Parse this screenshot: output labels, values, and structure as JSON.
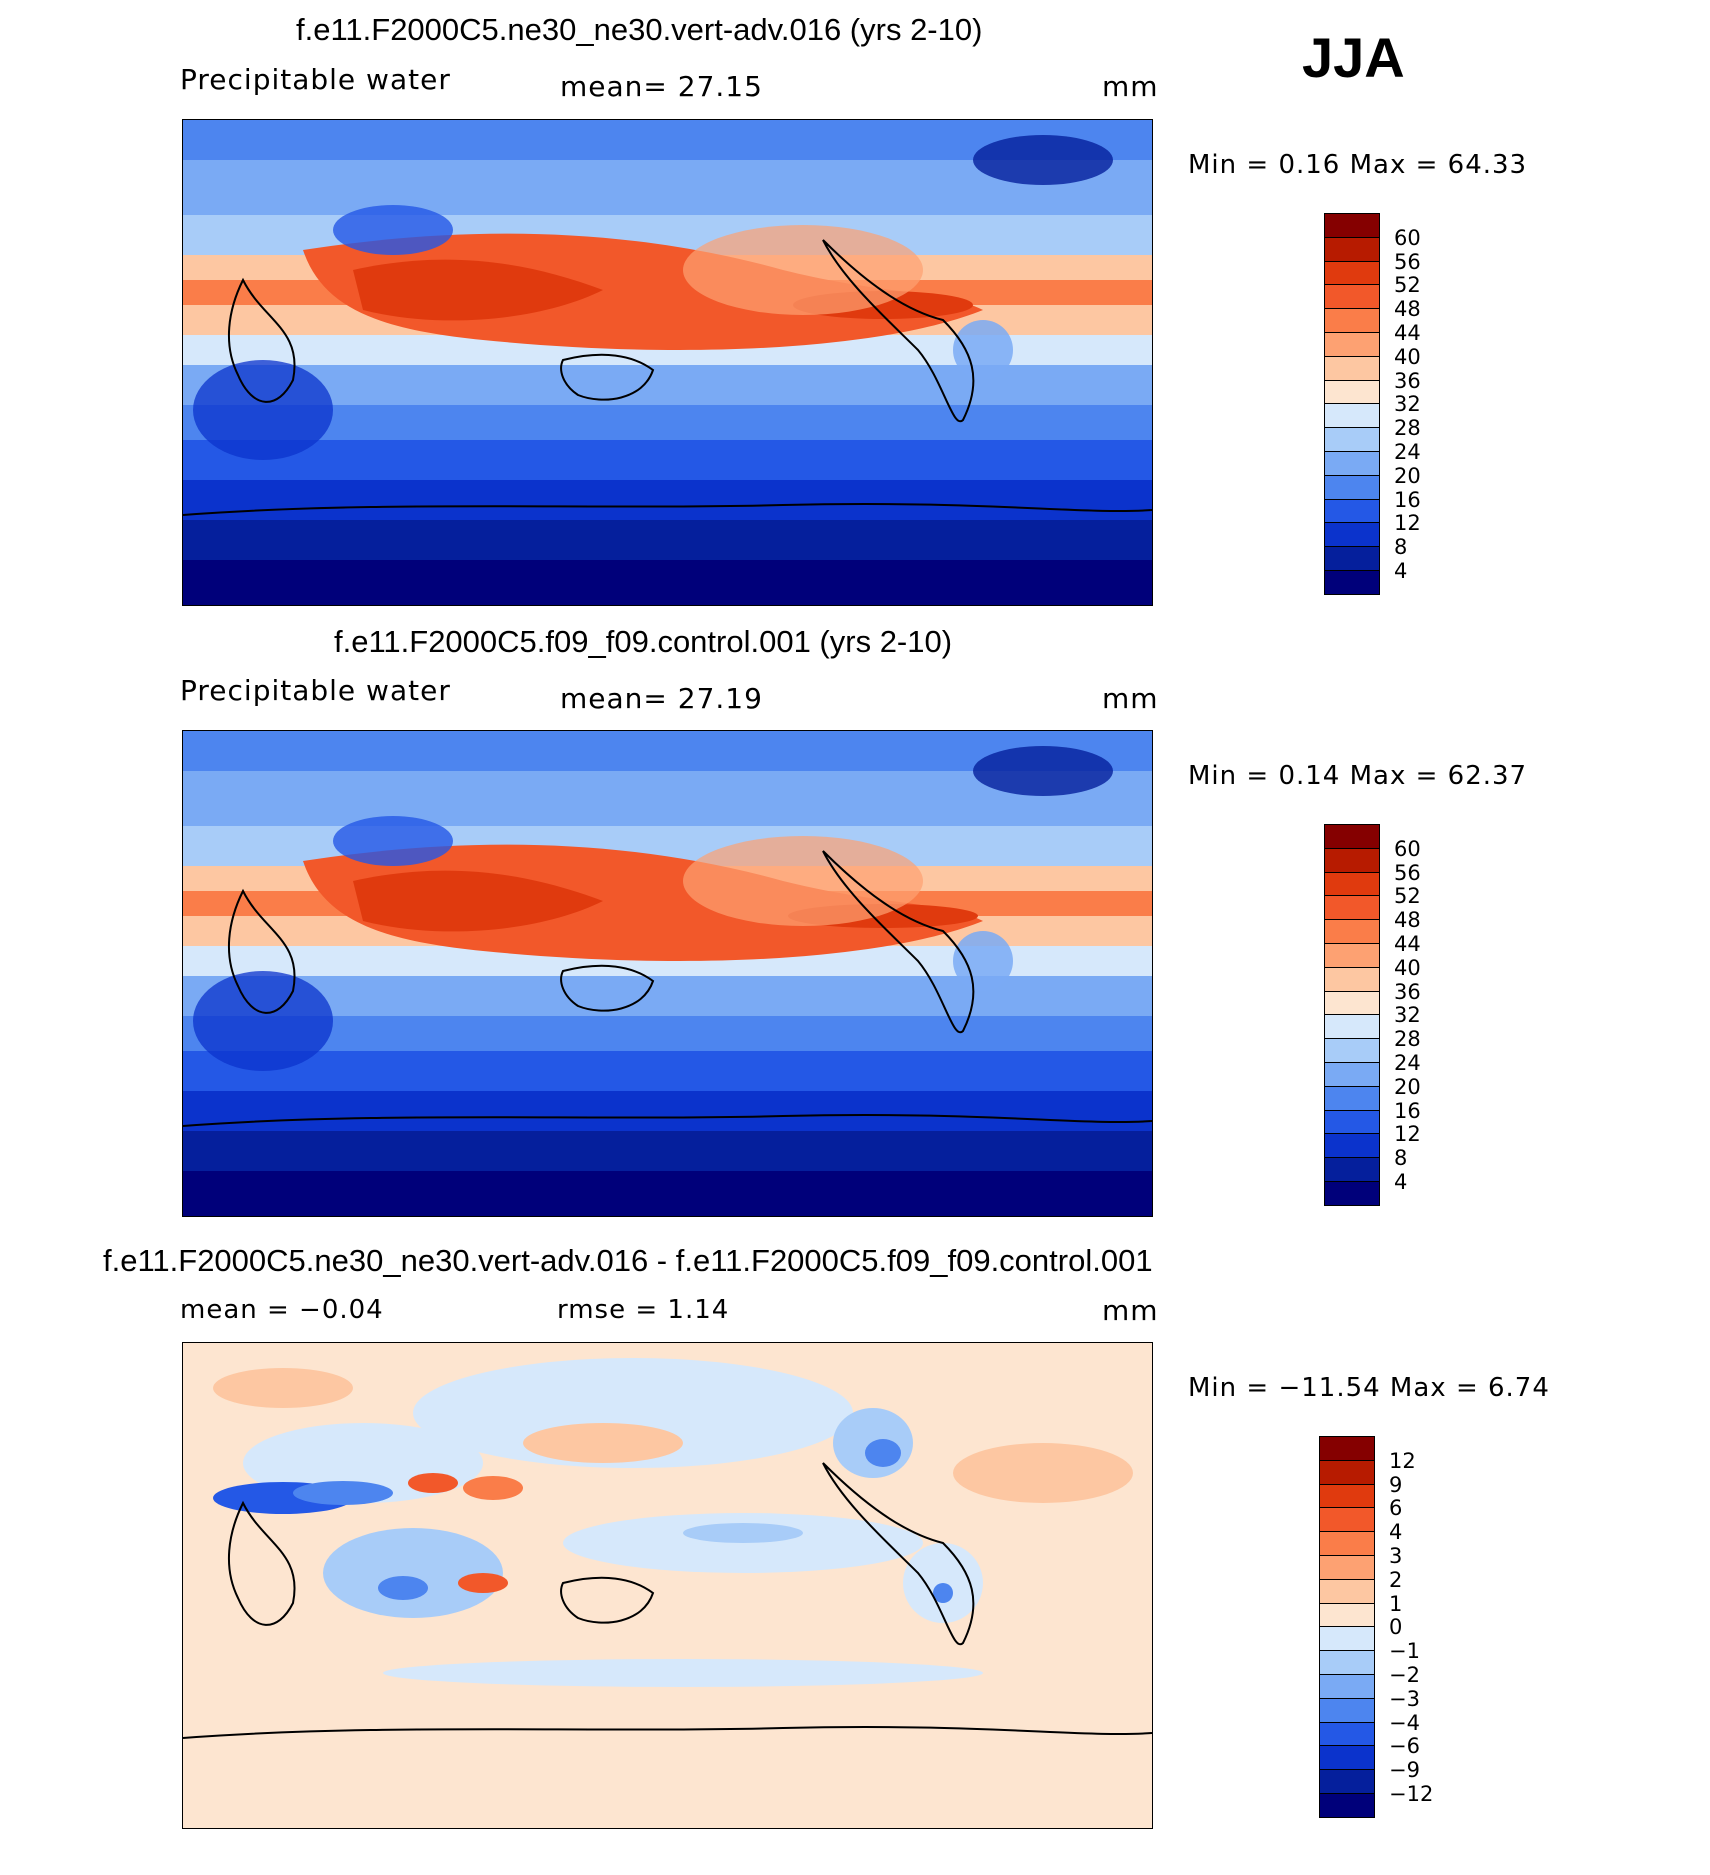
{
  "season": "JJA",
  "panels": [
    {
      "title": "f.e11.F2000C5.ne30_ne30.vert-adv.016 (yrs 2-10)",
      "variable": "Precipitable water",
      "mean_text": "mean=   27.15",
      "units": "mm",
      "minmax_text": "Min =     0.16 Max =   64.33",
      "colorbar": {
        "labels": [
          "60",
          "56",
          "52",
          "48",
          "44",
          "40",
          "36",
          "32",
          "28",
          "24",
          "20",
          "16",
          "12",
          "8",
          "4"
        ],
        "colors": [
          "#850000",
          "#b71b00",
          "#e03a0e",
          "#f2582a",
          "#fa7d49",
          "#fda172",
          "#fdc7a2",
          "#fde5d0",
          "#d6e8fb",
          "#a8ccf8",
          "#7aaaf4",
          "#4d85ef",
          "#2458e6",
          "#0b33cc",
          "#051f9c",
          "#00007a"
        ]
      }
    },
    {
      "title": "f.e11.F2000C5.f09_f09.control.001 (yrs 2-10)",
      "variable": "Precipitable water",
      "mean_text": "mean=   27.19",
      "units": "mm",
      "minmax_text": "Min =     0.14 Max =   62.37",
      "colorbar": {
        "labels": [
          "60",
          "56",
          "52",
          "48",
          "44",
          "40",
          "36",
          "32",
          "28",
          "24",
          "20",
          "16",
          "12",
          "8",
          "4"
        ],
        "colors": [
          "#850000",
          "#b71b00",
          "#e03a0e",
          "#f2582a",
          "#fa7d49",
          "#fda172",
          "#fdc7a2",
          "#fde5d0",
          "#d6e8fb",
          "#a8ccf8",
          "#7aaaf4",
          "#4d85ef",
          "#2458e6",
          "#0b33cc",
          "#051f9c",
          "#00007a"
        ]
      }
    },
    {
      "title": "f.e11.F2000C5.ne30_ne30.vert-adv.016 - f.e11.F2000C5.f09_f09.control.001",
      "mean_text": "mean =   −0.04",
      "rmse_text": "rmse =    1.14",
      "units": "mm",
      "minmax_text": "Min = −11.54 Max =    6.74",
      "colorbar": {
        "labels": [
          "12",
          "9",
          "6",
          "4",
          "3",
          "2",
          "1",
          "0",
          "−1",
          "−2",
          "−3",
          "−4",
          "−6",
          "−9",
          "−12"
        ],
        "colors": [
          "#850000",
          "#b71b00",
          "#e03a0e",
          "#f2582a",
          "#fa7d49",
          "#fda172",
          "#fdc7a2",
          "#fde5d0",
          "#d6e8fb",
          "#a8ccf8",
          "#7aaaf4",
          "#4d85ef",
          "#2458e6",
          "#0b33cc",
          "#051f9c",
          "#00007a"
        ]
      }
    }
  ]
}
